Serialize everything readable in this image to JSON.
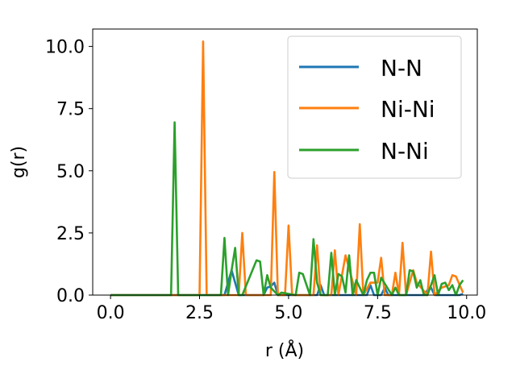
{
  "chart_data": {
    "type": "line",
    "xlabel": "r (Å)",
    "ylabel": "g(r)",
    "xlim": [
      -0.5,
      10.3
    ],
    "ylim": [
      0,
      10.7
    ],
    "xticks": [
      "0.0",
      "2.5",
      "5.0",
      "7.5",
      "10.0"
    ],
    "yticks": [
      "0.0",
      "2.5",
      "5.0",
      "7.5",
      "10.0"
    ],
    "legend_placement": "top-right",
    "grid": false,
    "series": [
      {
        "name": "N-N",
        "color": "#1f77b4",
        "x": [
          0.0,
          3.2,
          3.3,
          3.4,
          3.5,
          3.6,
          4.3,
          4.4,
          4.5,
          4.6,
          4.7,
          5.8,
          5.9,
          6.0,
          7.2,
          7.3,
          7.4,
          7.6,
          7.7,
          7.8,
          8.8,
          8.9,
          9.0,
          9.1,
          9.8,
          9.9
        ],
        "y": [
          0.0,
          0.0,
          0.5,
          1.0,
          0.5,
          0.0,
          0.0,
          0.3,
          0.35,
          0.5,
          0.0,
          0.0,
          0.4,
          0.0,
          0.0,
          0.4,
          0.0,
          0.0,
          0.3,
          0.0,
          0.0,
          0.2,
          0.3,
          0.0,
          0.0,
          0.05
        ]
      },
      {
        "name": "Ni-Ni",
        "color": "#ff7f0e",
        "x": [
          0.0,
          2.5,
          2.6,
          2.7,
          3.6,
          3.7,
          3.8,
          4.5,
          4.6,
          4.7,
          4.9,
          5.0,
          5.1,
          5.7,
          5.8,
          5.9,
          6.2,
          6.3,
          6.4,
          6.6,
          6.9,
          7.0,
          7.1,
          7.3,
          7.5,
          7.6,
          7.7,
          7.9,
          8.0,
          8.1,
          8.2,
          8.3,
          8.5,
          8.6,
          8.9,
          9.0,
          9.1,
          9.3,
          9.5,
          9.6,
          9.7,
          9.9
        ],
        "y": [
          0.0,
          0.0,
          10.2,
          0.0,
          0.0,
          2.5,
          0.0,
          0.0,
          4.95,
          0.0,
          0.0,
          2.8,
          0.0,
          0.0,
          2.0,
          0.0,
          0.0,
          1.8,
          0.0,
          1.6,
          0.0,
          2.85,
          0.0,
          0.5,
          0.5,
          1.5,
          0.0,
          0.0,
          0.9,
          0.0,
          2.1,
          0.0,
          1.0,
          0.5,
          0.0,
          1.75,
          0.0,
          0.3,
          0.4,
          0.8,
          0.75,
          0.1
        ]
      },
      {
        "name": "N-Ni",
        "color": "#2ca02c",
        "x": [
          0.0,
          1.7,
          1.8,
          1.9,
          3.1,
          3.2,
          3.3,
          3.4,
          3.5,
          3.6,
          3.7,
          4.1,
          4.2,
          4.3,
          4.4,
          4.5,
          4.7,
          4.8,
          5.2,
          5.3,
          5.4,
          5.6,
          5.7,
          5.8,
          5.9,
          6.1,
          6.2,
          6.3,
          6.4,
          6.5,
          6.6,
          6.7,
          6.8,
          6.9,
          7.1,
          7.2,
          7.3,
          7.4,
          7.5,
          7.6,
          7.9,
          8.0,
          8.1,
          8.3,
          8.4,
          8.5,
          8.6,
          8.7,
          8.8,
          8.9,
          9.1,
          9.2,
          9.3,
          9.4,
          9.5,
          9.6,
          9.7,
          9.8,
          9.9
        ],
        "y": [
          0.0,
          0.0,
          6.95,
          0.0,
          0.0,
          2.3,
          0.0,
          1.0,
          1.9,
          0.0,
          0.0,
          1.4,
          1.35,
          0.0,
          0.8,
          0.3,
          0.0,
          0.1,
          0.0,
          0.9,
          0.85,
          0.0,
          2.25,
          0.5,
          0.0,
          0.0,
          1.7,
          0.0,
          0.85,
          0.75,
          0.1,
          1.6,
          0.0,
          0.6,
          0.0,
          0.6,
          0.9,
          0.9,
          0.0,
          0.7,
          0.0,
          0.3,
          0.0,
          0.0,
          1.0,
          0.95,
          0.3,
          0.6,
          0.0,
          0.0,
          0.8,
          0.0,
          0.45,
          0.5,
          0.2,
          0.4,
          0.0,
          0.4,
          0.6
        ]
      }
    ]
  }
}
